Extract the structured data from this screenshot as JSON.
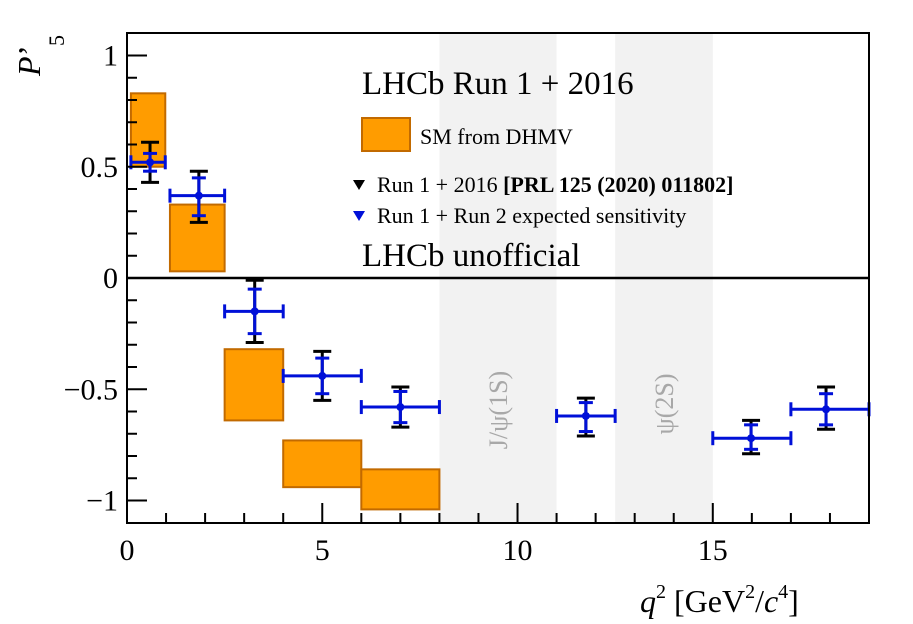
{
  "chart_data": {
    "type": "scatter",
    "title": "LHCb Run 1 + 2016",
    "subtitle": "LHCb unofficial",
    "xlabel": {
      "main": "q",
      "sup": "2",
      "unit_open": " [GeV",
      "unit_sup1": "2",
      "unit_mid": "/",
      "unit_c": "c",
      "unit_sup2": "4",
      "unit_close": "]"
    },
    "ylabel": {
      "main": "P",
      "prime": "’",
      "sub": "5"
    },
    "xlim": [
      0,
      19
    ],
    "ylim": [
      -1.1,
      1.1
    ],
    "x_ticks": [
      {
        "value": 0,
        "label": "0"
      },
      {
        "value": 5,
        "label": "5"
      },
      {
        "value": 10,
        "label": "10"
      },
      {
        "value": 15,
        "label": "15"
      }
    ],
    "y_ticks": [
      {
        "value": 1,
        "label": "1"
      },
      {
        "value": 0.5,
        "label": "0.5"
      },
      {
        "value": 0,
        "label": "0"
      },
      {
        "value": -0.5,
        "label": "−0.5"
      },
      {
        "value": -1,
        "label": "−1"
      }
    ],
    "veto_bands": [
      {
        "x0": 8.0,
        "x1": 11.0,
        "label": "J/ψ(1S)"
      },
      {
        "x0": 12.5,
        "x1": 15.0,
        "label": "ψ(2S)"
      }
    ],
    "theory_boxes": [
      {
        "x0": 0.1,
        "x1": 0.98,
        "y0": 0.5,
        "y1": 0.83
      },
      {
        "x0": 1.1,
        "x1": 2.5,
        "y0": 0.03,
        "y1": 0.33
      },
      {
        "x0": 2.5,
        "x1": 4.0,
        "y0": -0.64,
        "y1": -0.32
      },
      {
        "x0": 4.0,
        "x1": 6.0,
        "y0": -0.94,
        "y1": -0.73
      },
      {
        "x0": 6.0,
        "x1": 8.0,
        "y0": -1.04,
        "y1": -0.86
      }
    ],
    "series": [
      {
        "name": "Run 1 + 2016",
        "label_prefix": "Run 1 + 2016 ",
        "label_bold": "[PRL 125 (2020) 011802]",
        "color": "#000000",
        "points": [
          {
            "x": 0.59,
            "y": 0.52,
            "ylo": 0.43,
            "yhi": 0.61
          },
          {
            "x": 1.84,
            "y": 0.37,
            "ylo": 0.25,
            "yhi": 0.48
          },
          {
            "x": 3.27,
            "y": -0.15,
            "ylo": -0.29,
            "yhi": -0.01
          },
          {
            "x": 5.0,
            "y": -0.44,
            "ylo": -0.55,
            "yhi": -0.33
          },
          {
            "x": 7.0,
            "y": -0.58,
            "ylo": -0.67,
            "yhi": -0.49
          },
          {
            "x": 11.75,
            "y": -0.62,
            "ylo": -0.71,
            "yhi": -0.54
          },
          {
            "x": 15.98,
            "y": -0.72,
            "ylo": -0.79,
            "yhi": -0.64
          },
          {
            "x": 17.9,
            "y": -0.59,
            "ylo": -0.68,
            "yhi": -0.49
          }
        ]
      },
      {
        "name": "Run 1 + Run 2 expected sensitivity",
        "label_prefix": "Run 1 + Run 2  expected sensitivity",
        "color": "#0010d8",
        "points": [
          {
            "x": 0.59,
            "xlo": 0.1,
            "xhi": 0.98,
            "y": 0.52,
            "ylo": 0.48,
            "yhi": 0.56
          },
          {
            "x": 1.84,
            "xlo": 1.1,
            "xhi": 2.5,
            "y": 0.37,
            "ylo": 0.28,
            "yhi": 0.45
          },
          {
            "x": 3.27,
            "xlo": 2.5,
            "xhi": 4.0,
            "y": -0.15,
            "ylo": -0.25,
            "yhi": -0.05
          },
          {
            "x": 5.0,
            "xlo": 4.0,
            "xhi": 6.0,
            "y": -0.44,
            "ylo": -0.52,
            "yhi": -0.36
          },
          {
            "x": 7.0,
            "xlo": 6.0,
            "xhi": 8.0,
            "y": -0.58,
            "ylo": -0.65,
            "yhi": -0.51
          },
          {
            "x": 11.75,
            "xlo": 11.0,
            "xhi": 12.5,
            "y": -0.62,
            "ylo": -0.69,
            "yhi": -0.56
          },
          {
            "x": 15.98,
            "xlo": 15.0,
            "xhi": 17.0,
            "y": -0.72,
            "ylo": -0.77,
            "yhi": -0.66
          },
          {
            "x": 17.9,
            "xlo": 17.0,
            "xhi": 19.0,
            "y": -0.59,
            "ylo": -0.66,
            "yhi": -0.52
          }
        ]
      }
    ],
    "legend": {
      "placement": "top-right",
      "sm_label": "SM from DHMV",
      "colors": {
        "box_fill": "#ff9c00",
        "box_edge": "#c26a00",
        "band": "#f2f2f2",
        "zero_line": "#000000"
      }
    }
  }
}
